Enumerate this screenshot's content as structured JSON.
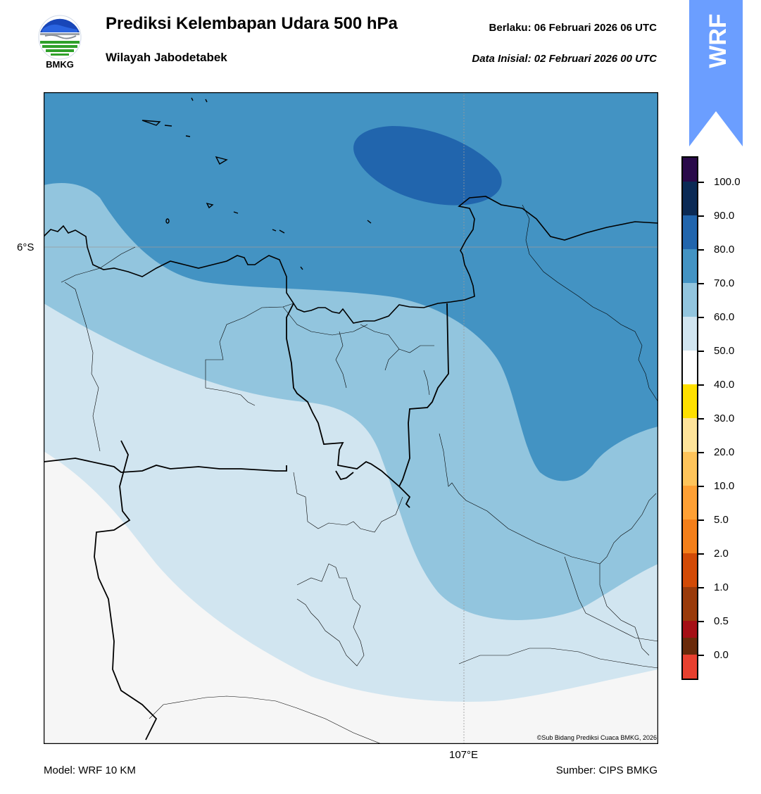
{
  "header": {
    "title": "Prediksi Kelembapan Udara 500 hPa",
    "subtitle": "Wilayah Jabodetabek",
    "valid": "Berlaku:  06 Februari 2026 06 UTC",
    "init": "Data Inisial:  02 Februari 2026 00 UTC"
  },
  "logo": {
    "text": "BMKG",
    "icon": "bmkg-logo"
  },
  "badge": {
    "text": "WRF",
    "color": "#6b9eff"
  },
  "map": {
    "lat_label": "6°S",
    "lon_label": "107°E",
    "copyright": "©Sub Bidang Prediksi Cuaca BMKG, 2026"
  },
  "colorbar": {
    "labels": [
      "100.0",
      "90.0",
      "80.0",
      "70.0",
      "60.0",
      "50.0",
      "40.0",
      "30.0",
      "20.0",
      "10.0",
      "5.0",
      "2.0",
      "1.0",
      "0.5",
      "0.0"
    ],
    "colors": [
      "#2a0a4a",
      "#0b2a55",
      "#2165ad",
      "#4393c3",
      "#92c5de",
      "#d1e5f0",
      "#f6f6f6",
      "#ffe000",
      "#ffe49a",
      "#ffc45a",
      "#ffa034",
      "#f47f1a",
      "#d24a06",
      "#993a0a",
      "#6a2a0a",
      "#a50f15",
      "#e8402f"
    ]
  },
  "footer": {
    "model": "Model: WRF 10 KM",
    "source": "Sumber: CIPS BMKG"
  }
}
